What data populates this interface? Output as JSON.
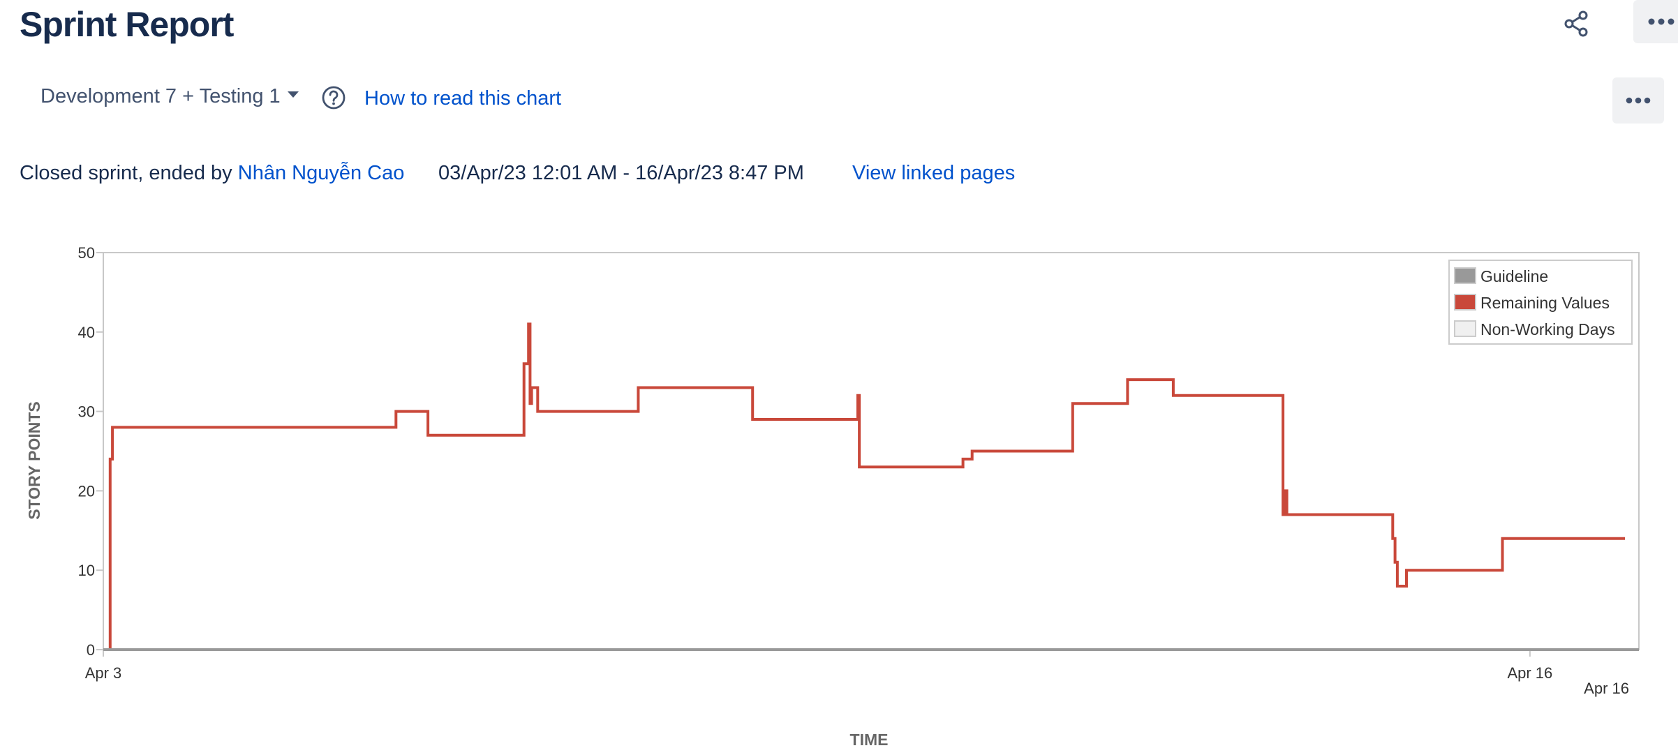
{
  "header": {
    "title": "Sprint Report"
  },
  "icons": {
    "share": "share-icon",
    "more": "more-horizontal-icon",
    "help": "question-circle-icon",
    "caret": "chevron-down-icon"
  },
  "controls": {
    "sprint_selected": "Development 7 + Testing 1",
    "help_link": "How to read this chart"
  },
  "sprint_info": {
    "status_prefix": "Closed sprint, ended by ",
    "ended_by": "Nhân Nguyễn Cao",
    "date_range": "03/Apr/23 12:01 AM - 16/Apr/23 8:47 PM",
    "linked_pages": "View linked pages"
  },
  "colors": {
    "remaining": "#c9483a",
    "guideline": "#999999",
    "non_working": "#f0f0f0",
    "link": "#0052cc",
    "title": "#172b4d"
  },
  "chart_data": {
    "type": "line",
    "title": "",
    "xlabel": "TIME",
    "ylabel": "STORY POINTS",
    "ylim": [
      0,
      50
    ],
    "yticks": [
      0,
      10,
      20,
      30,
      40,
      50
    ],
    "xlim": [
      "2023-04-03 00:00",
      "2023-04-16 20:47"
    ],
    "x_tick_labels": [
      {
        "at": "2023-04-03 00:00",
        "label": "Apr 3"
      },
      {
        "at": "2023-04-16 00:00",
        "label": "Apr 16"
      },
      {
        "at": "2023-04-16 20:47",
        "label": "Apr 16"
      }
    ],
    "legend_position": "top-right",
    "legend": [
      "Guideline",
      "Remaining Values",
      "Non-Working Days"
    ],
    "series": [
      {
        "name": "Remaining Values",
        "step": true,
        "points": [
          [
            "2023-04-03 01:00",
            0
          ],
          [
            "2023-04-03 01:30",
            24
          ],
          [
            "2023-04-03 02:00",
            28
          ],
          [
            "2023-04-05 16:00",
            30
          ],
          [
            "2023-04-05 23:00",
            27
          ],
          [
            "2023-04-06 20:00",
            36
          ],
          [
            "2023-04-06 21:00",
            41
          ],
          [
            "2023-04-06 21:20",
            31
          ],
          [
            "2023-04-06 21:40",
            33
          ],
          [
            "2023-04-06 23:00",
            30
          ],
          [
            "2023-04-07 21:00",
            33
          ],
          [
            "2023-04-08 22:00",
            29
          ],
          [
            "2023-04-09 21:00",
            32
          ],
          [
            "2023-04-09 21:20",
            23
          ],
          [
            "2023-04-10 20:00",
            24
          ],
          [
            "2023-04-10 22:00",
            25
          ],
          [
            "2023-04-11 20:00",
            31
          ],
          [
            "2023-04-12 08:00",
            34
          ],
          [
            "2023-04-12 18:00",
            32
          ],
          [
            "2023-04-13 18:00",
            17
          ],
          [
            "2023-04-13 18:30",
            20
          ],
          [
            "2023-04-13 18:50",
            17
          ],
          [
            "2023-04-14 18:00",
            14
          ],
          [
            "2023-04-14 18:30",
            11
          ],
          [
            "2023-04-14 19:00",
            8
          ],
          [
            "2023-04-14 21:00",
            10
          ],
          [
            "2023-04-15 18:00",
            14
          ],
          [
            "2023-04-16 20:47",
            14
          ]
        ]
      },
      {
        "name": "Guideline",
        "points": [
          [
            "2023-04-03 00:00",
            0
          ],
          [
            "2023-04-16 20:47",
            0
          ]
        ]
      }
    ]
  }
}
